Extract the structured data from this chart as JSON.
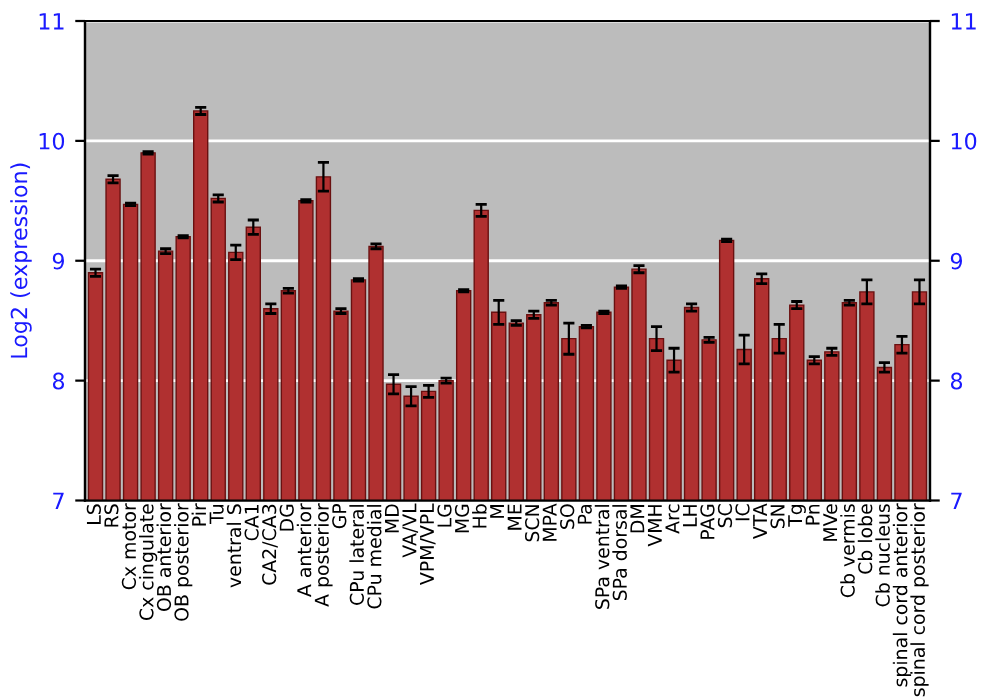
{
  "chart_data": {
    "type": "bar",
    "ylabel": "Log2 (expression)",
    "categories": [
      "LS",
      "RS",
      "Cx motor",
      "Cx cingulate",
      "OB anterior",
      "OB posterior",
      "Pir",
      "Tu",
      "ventral S",
      "CA1",
      "CA2/CA3",
      "DG",
      "A anterior",
      "A posterior",
      "GP",
      "CPu lateral",
      "CPu medial",
      "MD",
      "VA/VL",
      "VPM/VPL",
      "LG",
      "MG",
      "Hb",
      "M",
      "ME",
      "SCN",
      "MPA",
      "SO",
      "Pa",
      "SPa ventral",
      "SPa dorsal",
      "DM",
      "VMH",
      "Arc",
      "LH",
      "PAG",
      "SC",
      "IC",
      "VTA",
      "SN",
      "Tg",
      "Pn",
      "MVe",
      "Cb vermis",
      "Cb lobe",
      "Cb nucleus",
      "spinal cord anterior",
      "spinal cord posterior"
    ],
    "values": [
      8.9,
      9.68,
      9.47,
      9.9,
      9.08,
      9.2,
      10.25,
      9.52,
      9.07,
      9.28,
      8.6,
      8.75,
      9.5,
      9.7,
      8.58,
      8.84,
      9.12,
      7.97,
      7.87,
      7.91,
      8.0,
      8.75,
      9.42,
      8.57,
      8.48,
      8.55,
      8.65,
      8.35,
      8.45,
      8.57,
      8.78,
      8.93,
      8.35,
      8.17,
      8.61,
      8.34,
      9.17,
      8.26,
      8.85,
      8.35,
      8.63,
      8.17,
      8.24,
      8.65,
      8.74,
      8.11,
      8.3,
      8.74
    ],
    "errors": [
      0.03,
      0.03,
      0.01,
      0.01,
      0.02,
      0.01,
      0.03,
      0.03,
      0.06,
      0.06,
      0.04,
      0.02,
      0.01,
      0.12,
      0.02,
      0.01,
      0.02,
      0.08,
      0.08,
      0.05,
      0.02,
      0.01,
      0.05,
      0.1,
      0.02,
      0.03,
      0.02,
      0.13,
      0.01,
      0.01,
      0.01,
      0.03,
      0.1,
      0.1,
      0.03,
      0.02,
      0.01,
      0.12,
      0.04,
      0.12,
      0.03,
      0.03,
      0.03,
      0.02,
      0.1,
      0.04,
      0.07,
      0.1
    ],
    "color": "#b03030",
    "ylim": [
      7,
      11
    ],
    "yticks": [
      7,
      8,
      9,
      10,
      11
    ],
    "y2lim": [
      7,
      11
    ],
    "y2ticks": [
      7,
      8,
      9,
      10,
      11
    ],
    "grid": "y"
  }
}
